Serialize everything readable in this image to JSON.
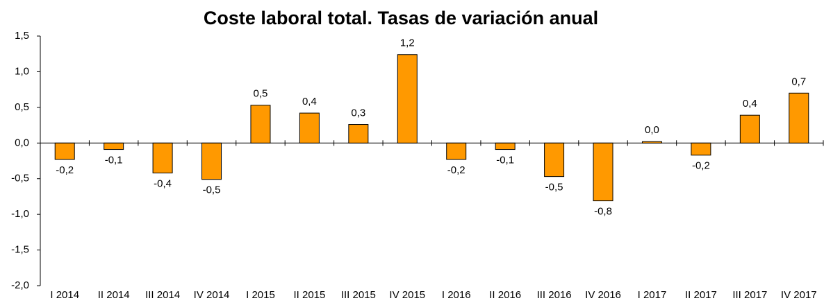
{
  "chart_data": {
    "type": "bar",
    "title": "Coste laboral total. Tasas de variación anual",
    "categories": [
      "I 2014",
      "II 2014",
      "III 2014",
      "IV 2014",
      "I 2015",
      "II 2015",
      "III 2015",
      "IV 2015",
      "I 2016",
      "II 2016",
      "III 2016",
      "IV 2016",
      "I 2017",
      "II 2017",
      "III 2017",
      "IV 2017"
    ],
    "values": [
      -0.23,
      -0.09,
      -0.42,
      -0.51,
      0.53,
      0.42,
      0.26,
      1.24,
      -0.23,
      -0.09,
      -0.47,
      -0.81,
      0.02,
      -0.17,
      0.39,
      0.7
    ],
    "value_labels": [
      "-0,2",
      "-0,1",
      "-0,4",
      "-0,5",
      "0,5",
      "0,4",
      "0,3",
      "1,2",
      "-0,2",
      "-0,1",
      "-0,5",
      "-0,8",
      "0,0",
      "-0,2",
      "0,4",
      "0,7"
    ],
    "color": "#ff9900",
    "ylim": [
      -2.0,
      1.5
    ],
    "yticks": [
      {
        "value": -2.0,
        "label": "-2,0"
      },
      {
        "value": -1.5,
        "label": "-1,5"
      },
      {
        "value": -1.0,
        "label": "-1,0"
      },
      {
        "value": -0.5,
        "label": "-0,5"
      },
      {
        "value": 0.0,
        "label": "0,0"
      },
      {
        "value": 0.5,
        "label": "0,5"
      },
      {
        "value": 1.0,
        "label": "1,0"
      },
      {
        "value": 1.5,
        "label": "1,5"
      }
    ],
    "grid": false
  }
}
